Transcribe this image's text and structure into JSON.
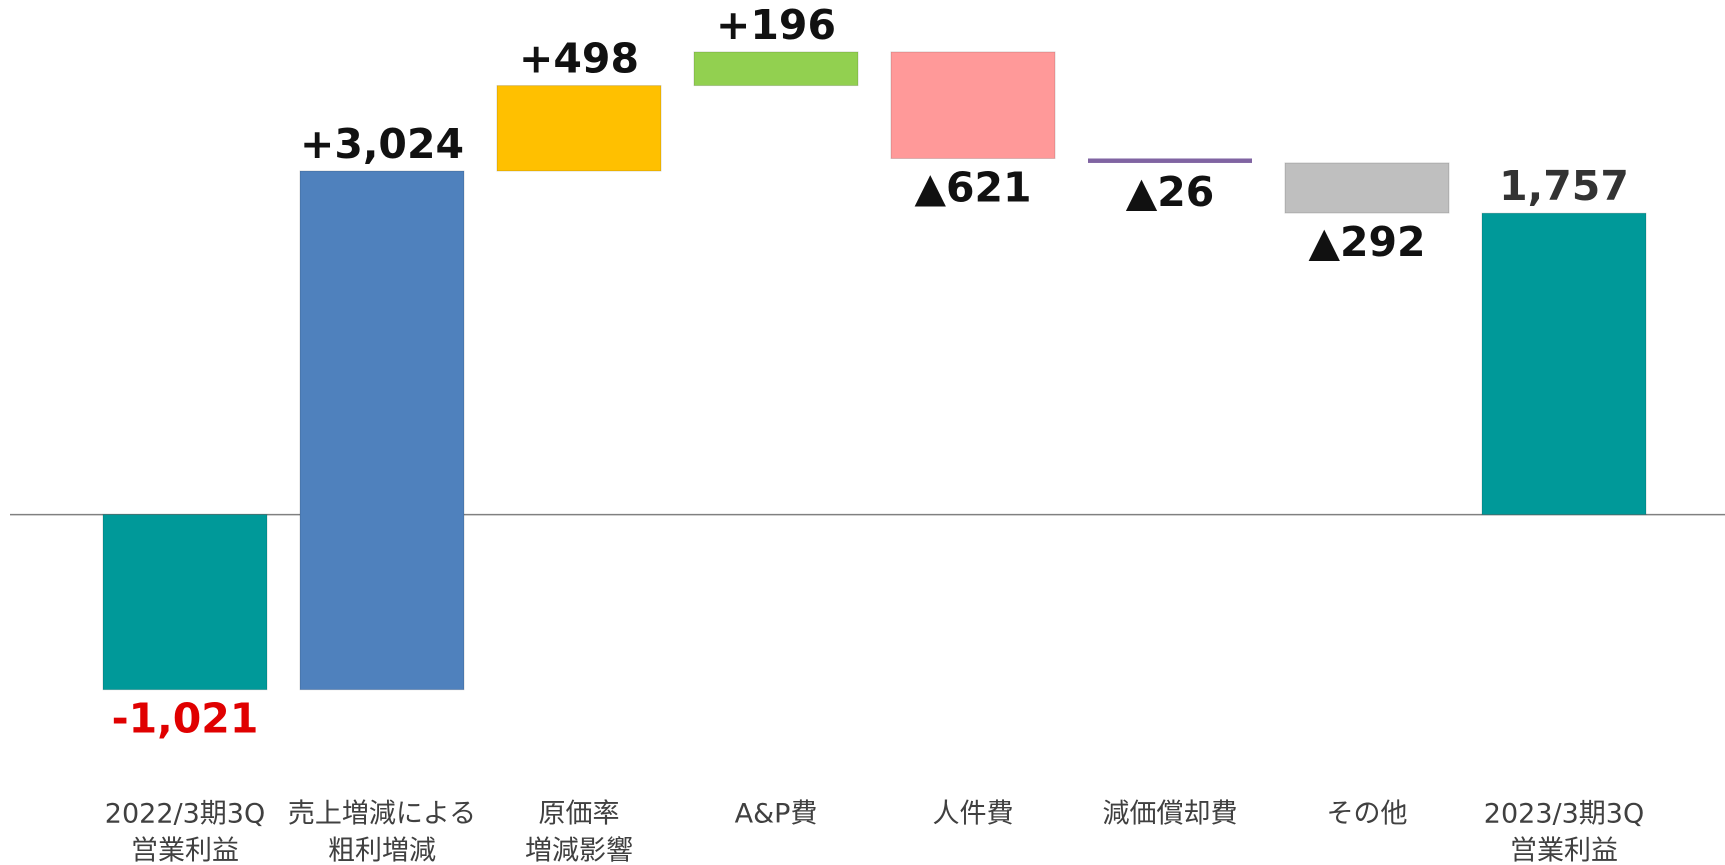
{
  "chart_data": {
    "type": "waterfall",
    "categories": [
      [
        "2022/3期3Q",
        "営業利益"
      ],
      [
        "売上増減による",
        "粗利増減"
      ],
      [
        "原価率",
        "増減影響"
      ],
      [
        "A&P費"
      ],
      [
        "人件費"
      ],
      [
        "減価償却費"
      ],
      [
        "その他"
      ],
      [
        "2023/3期3Q",
        "営業利益"
      ]
    ],
    "values": [
      -1021,
      3024,
      498,
      196,
      -621,
      -26,
      -292,
      1757
    ],
    "value_labels": [
      "-1,021",
      "+3,024",
      "+498",
      "+196",
      "▲621",
      "▲26",
      "▲292",
      "1,757"
    ],
    "colors": [
      "#009999",
      "#4f81bd",
      "#ffc000",
      "#92d050",
      "#ff9999",
      "#8064a2",
      "#bfbfbf",
      "#009999"
    ],
    "label_colors": [
      "#e00000",
      "#111111",
      "#111111",
      "#111111",
      "#111111",
      "#111111",
      "#111111",
      "#333333"
    ],
    "ylim": [
      -1600,
      3000
    ]
  }
}
